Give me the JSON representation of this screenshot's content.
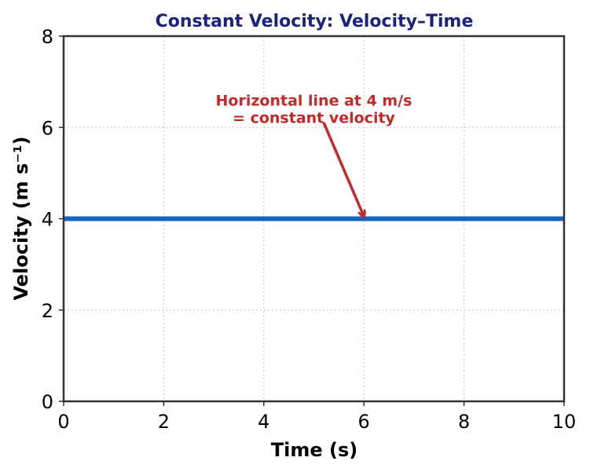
{
  "chart_data": {
    "type": "line",
    "title": "Constant Velocity: Velocity–Time",
    "xlabel": "Time (s)",
    "ylabel": "Velocity (m s⁻¹)",
    "xlim": [
      0,
      10
    ],
    "ylim": [
      0,
      8
    ],
    "x_ticks": [
      0,
      2,
      4,
      6,
      8,
      10
    ],
    "y_ticks": [
      0,
      2,
      4,
      6,
      8
    ],
    "grid": true,
    "series": [
      {
        "x": [
          0,
          10
        ],
        "y": [
          4,
          4
        ],
        "color": "#1565c0"
      }
    ],
    "annotation": {
      "lines": [
        "Horizontal line at 4 m/s",
        "= constant velocity"
      ],
      "arrow_to": [
        6,
        4.05
      ],
      "text_at": [
        5,
        6.6
      ],
      "color": "#c62828"
    },
    "title_color": "#1a237e"
  }
}
